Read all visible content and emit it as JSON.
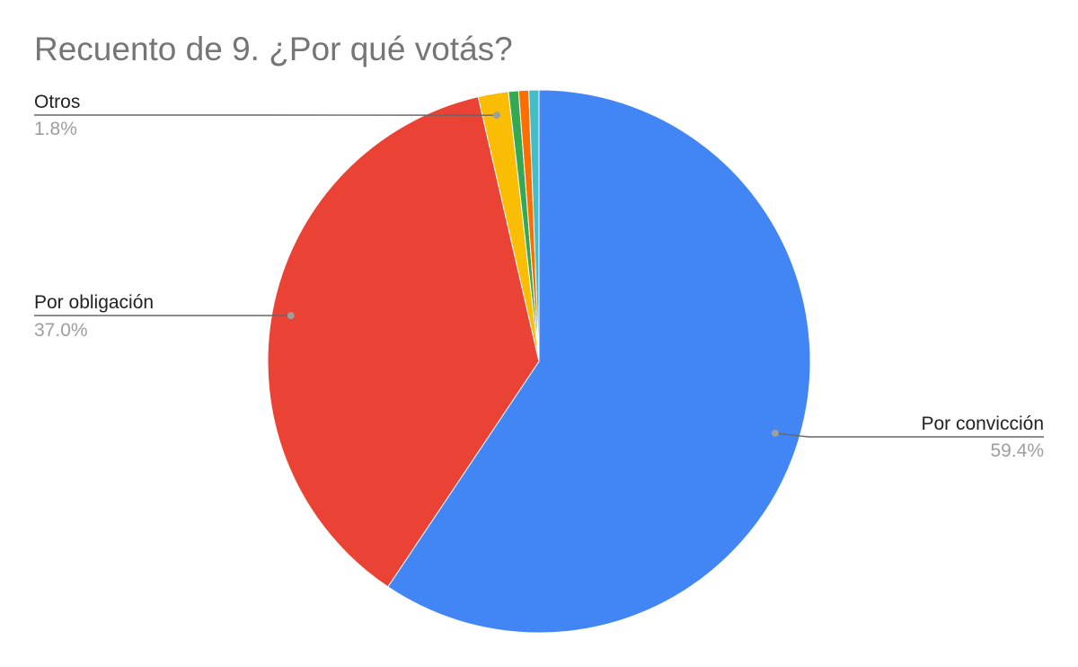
{
  "chart_data": {
    "type": "pie",
    "title": "Recuento de 9. ¿Por qué votás?",
    "slices": [
      {
        "name": "Por convicción",
        "value": 59.4,
        "label_value": "59.4%",
        "color": "#4285f4",
        "labeled": true
      },
      {
        "name": "Por obligación",
        "value": 37.0,
        "label_value": "37.0%",
        "color": "#ea4335",
        "labeled": true
      },
      {
        "name": "Otros",
        "value": 1.8,
        "label_value": "1.8%",
        "color": "#fbbc04",
        "labeled": true
      },
      {
        "name": "",
        "value": 0.6,
        "label_value": "",
        "color": "#34a853",
        "labeled": false
      },
      {
        "name": "",
        "value": 0.6,
        "label_value": "",
        "color": "#ff6d01",
        "labeled": false
      },
      {
        "name": "",
        "value": 0.6,
        "label_value": "",
        "color": "#46bdc6",
        "labeled": false
      }
    ],
    "start_angle": "12 o'clock",
    "direction": "clockwise",
    "legend": "none"
  }
}
